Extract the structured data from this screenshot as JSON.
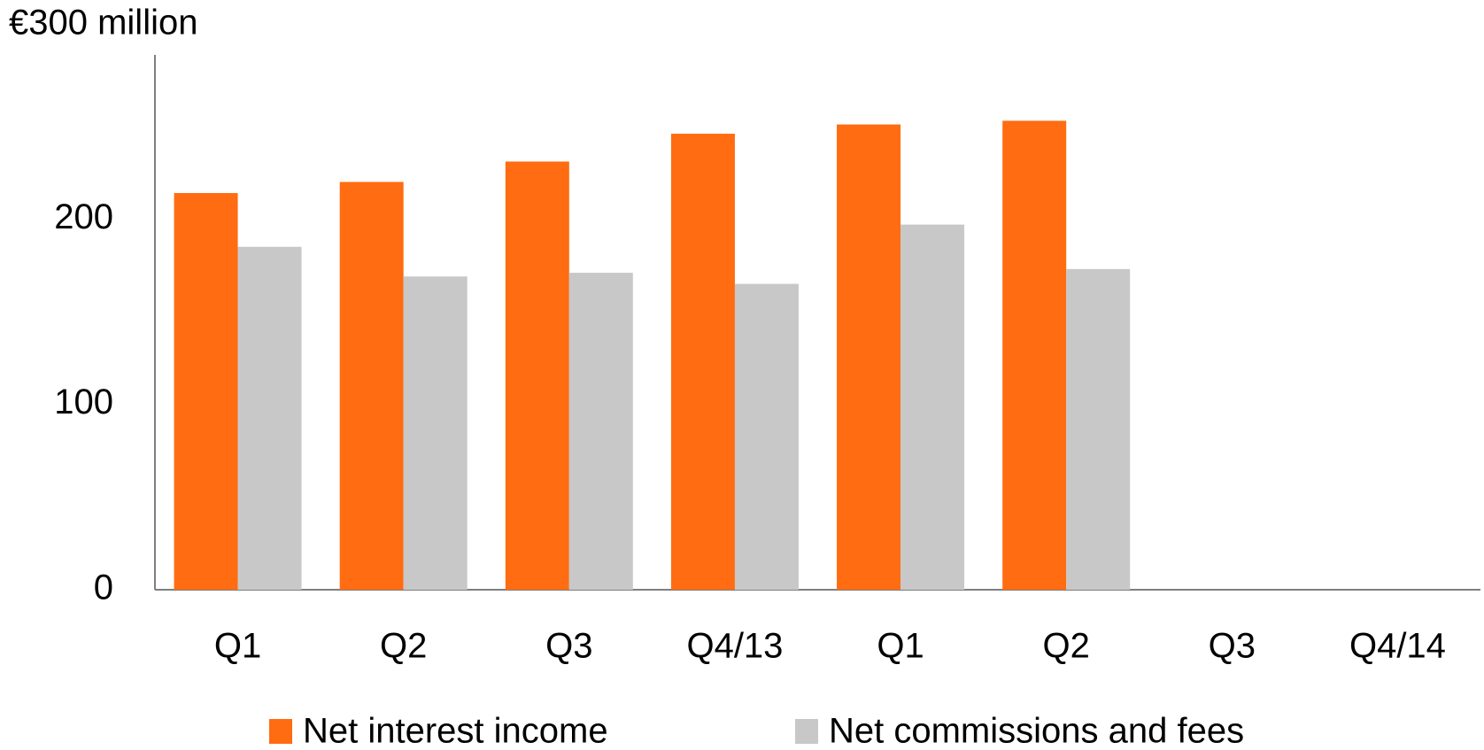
{
  "chart_data": {
    "type": "bar",
    "categories": [
      "Q1",
      "Q2",
      "Q3",
      "Q4/13",
      "Q1",
      "Q2",
      "Q3",
      "Q4/14"
    ],
    "series": [
      {
        "name": "Net interest income",
        "color": "#ff6c12",
        "values": [
          214,
          220,
          231,
          246,
          251,
          253,
          null,
          null
        ]
      },
      {
        "name": "Net commissions and fees",
        "color": "#c8c8c8",
        "values": [
          185,
          169,
          171,
          165,
          197,
          173,
          null,
          null
        ]
      }
    ],
    "ylim": [
      0,
      300
    ],
    "yticks": [
      0,
      100,
      200,
      {
        "value": 300,
        "label": "€300 million"
      }
    ],
    "grid": false
  }
}
